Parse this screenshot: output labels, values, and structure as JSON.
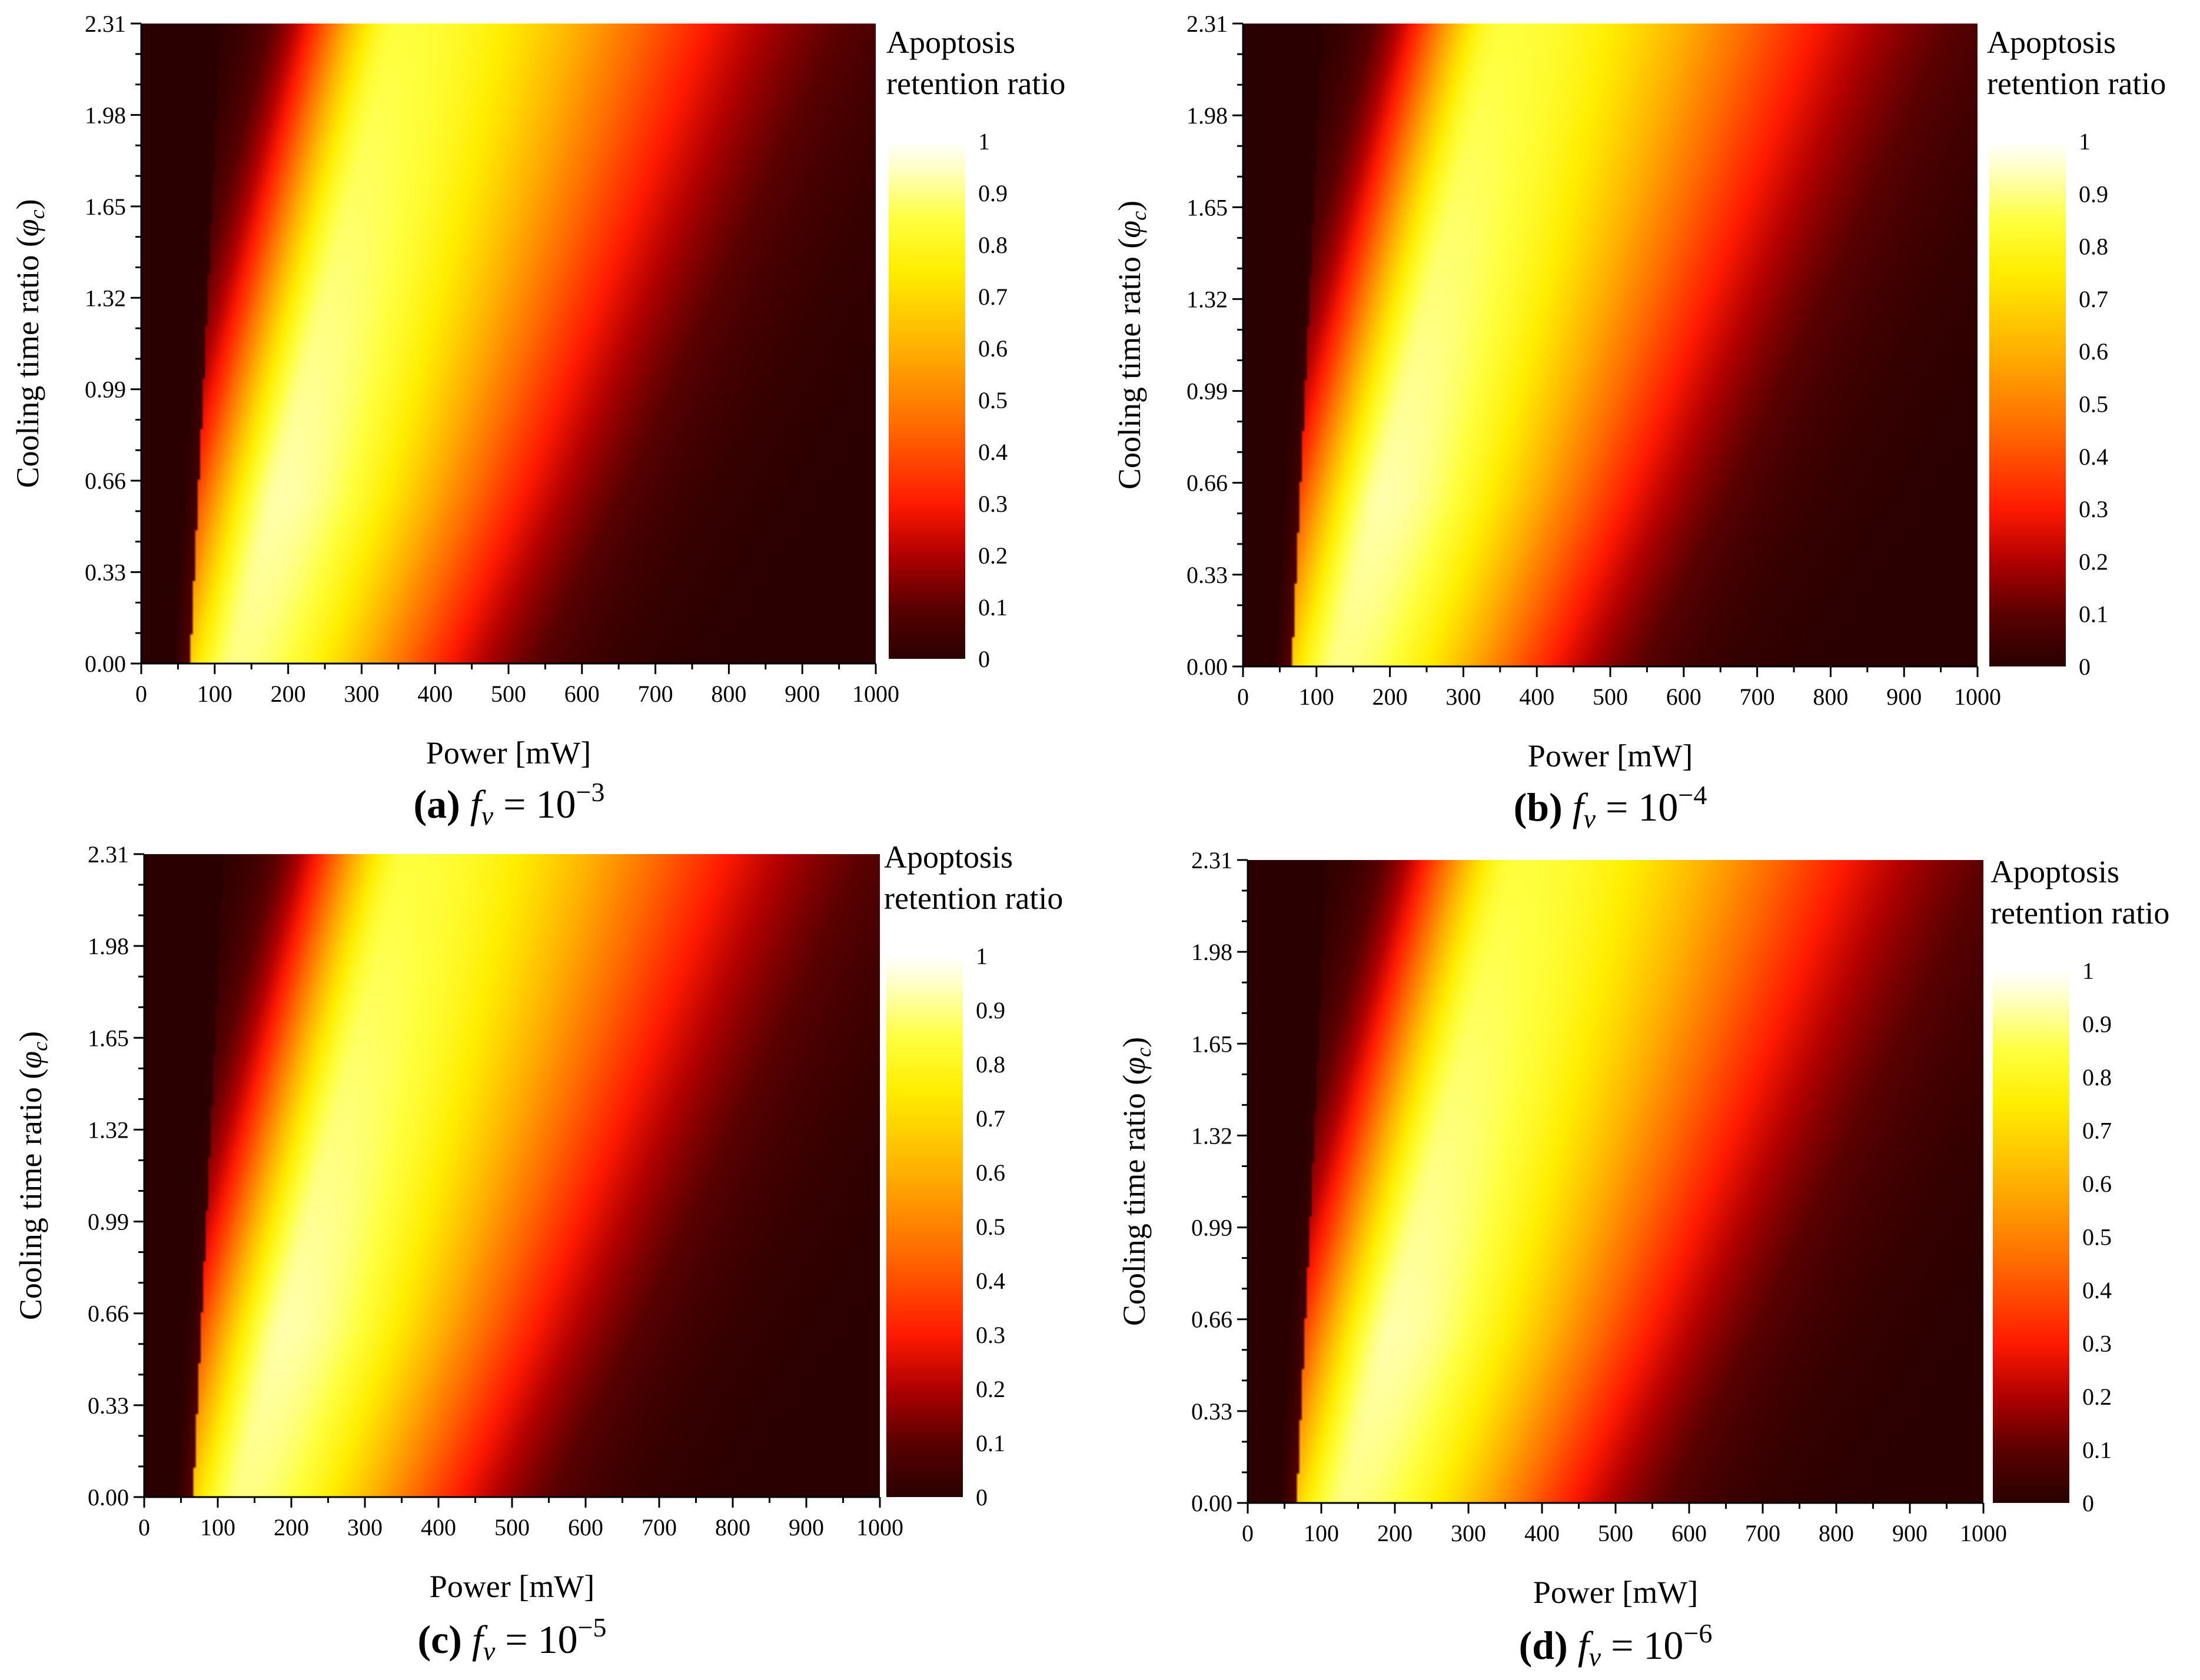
{
  "figure": {
    "panels": [
      "a",
      "b",
      "c",
      "d"
    ]
  },
  "chart_data": [
    {
      "type": "heatmap",
      "panel": "a",
      "caption": {
        "letter": "(a)",
        "symbol": "f",
        "subscript": "v",
        "relation": "= 10",
        "exponent": "−3"
      },
      "xlabel": "Power [mW]",
      "ylabel_text": "Cooling time ratio (",
      "ylabel_symbol": "φ",
      "ylabel_sub": "c",
      "ylabel_close": ")",
      "x_ticks": [
        "0",
        "100",
        "200",
        "300",
        "400",
        "500",
        "600",
        "700",
        "800",
        "900",
        "1000"
      ],
      "y_ticks": [
        "0.00",
        "0.33",
        "0.66",
        "0.99",
        "1.32",
        "1.65",
        "1.98",
        "2.31"
      ],
      "xlim": [
        0,
        1000
      ],
      "ylim": [
        0,
        2.31
      ],
      "colorbar": {
        "title_line1": "Apoptosis",
        "title_line2": "retention ratio",
        "ticks": [
          "0",
          "0.1",
          "0.2",
          "0.3",
          "0.4",
          "0.5",
          "0.6",
          "0.7",
          "0.8",
          "0.9",
          "1"
        ],
        "range": [
          0,
          1
        ]
      },
      "peak_ridge": {
        "power_at_phi0": 130,
        "power_per_unit_phi": 95,
        "width_mw": 170,
        "onset_mw": 65
      }
    },
    {
      "type": "heatmap",
      "panel": "b",
      "caption": {
        "letter": "(b)",
        "symbol": "f",
        "subscript": "v",
        "relation": "= 10",
        "exponent": "−4"
      },
      "xlabel": "Power [mW]",
      "ylabel_text": "Cooling time ratio (",
      "ylabel_symbol": "φ",
      "ylabel_sub": "c",
      "ylabel_close": ")",
      "x_ticks": [
        "0",
        "100",
        "200",
        "300",
        "400",
        "500",
        "600",
        "700",
        "800",
        "900",
        "1000"
      ],
      "y_ticks": [
        "0.00",
        "0.33",
        "0.66",
        "0.99",
        "1.32",
        "1.65",
        "1.98",
        "2.31"
      ],
      "xlim": [
        0,
        1000
      ],
      "ylim": [
        0,
        2.31
      ],
      "colorbar": {
        "title_line1": "Apoptosis",
        "title_line2": "retention ratio",
        "ticks": [
          "0",
          "0.1",
          "0.2",
          "0.3",
          "0.4",
          "0.5",
          "0.6",
          "0.7",
          "0.8",
          "0.9",
          "1"
        ],
        "range": [
          0,
          1
        ]
      },
      "peak_ridge": {
        "power_at_phi0": 130,
        "power_per_unit_phi": 97,
        "width_mw": 172,
        "onset_mw": 65
      }
    },
    {
      "type": "heatmap",
      "panel": "c",
      "caption": {
        "letter": "(c)",
        "symbol": "f",
        "subscript": "v",
        "relation": "= 10",
        "exponent": "−5"
      },
      "xlabel": "Power [mW]",
      "ylabel_text": "Cooling time ratio (",
      "ylabel_symbol": "φ",
      "ylabel_sub": "c",
      "ylabel_close": ")",
      "x_ticks": [
        "0",
        "100",
        "200",
        "300",
        "400",
        "500",
        "600",
        "700",
        "800",
        "900",
        "1000"
      ],
      "y_ticks": [
        "0.00",
        "0.33",
        "0.66",
        "0.99",
        "1.32",
        "1.65",
        "1.98",
        "2.31"
      ],
      "xlim": [
        0,
        1000
      ],
      "ylim": [
        0,
        2.31
      ],
      "colorbar": {
        "title_line1": "Apoptosis",
        "title_line2": "retention ratio",
        "ticks": [
          "0",
          "0.1",
          "0.2",
          "0.3",
          "0.4",
          "0.5",
          "0.6",
          "0.7",
          "0.8",
          "0.9",
          "1"
        ],
        "range": [
          0,
          1
        ]
      },
      "peak_ridge": {
        "power_at_phi0": 132,
        "power_per_unit_phi": 98,
        "width_mw": 175,
        "onset_mw": 65
      }
    },
    {
      "type": "heatmap",
      "panel": "d",
      "caption": {
        "letter": "(d)",
        "symbol": "f",
        "subscript": "v",
        "relation": "= 10",
        "exponent": "−6"
      },
      "xlabel": "Power [mW]",
      "ylabel_text": "Cooling time ratio (",
      "ylabel_symbol": "φ",
      "ylabel_sub": "c",
      "ylabel_close": ")",
      "x_ticks": [
        "0",
        "100",
        "200",
        "300",
        "400",
        "500",
        "600",
        "700",
        "800",
        "900",
        "1000"
      ],
      "y_ticks": [
        "0.00",
        "0.33",
        "0.66",
        "0.99",
        "1.32",
        "1.65",
        "1.98",
        "2.31"
      ],
      "xlim": [
        0,
        1000
      ],
      "ylim": [
        0,
        2.31
      ],
      "colorbar": {
        "title_line1": "Apoptosis",
        "title_line2": "retention ratio",
        "ticks": [
          "0",
          "0.1",
          "0.2",
          "0.3",
          "0.4",
          "0.5",
          "0.6",
          "0.7",
          "0.8",
          "0.9",
          "1"
        ],
        "range": [
          0,
          1
        ]
      },
      "peak_ridge": {
        "power_at_phi0": 135,
        "power_per_unit_phi": 100,
        "width_mw": 180,
        "onset_mw": 65
      }
    }
  ]
}
